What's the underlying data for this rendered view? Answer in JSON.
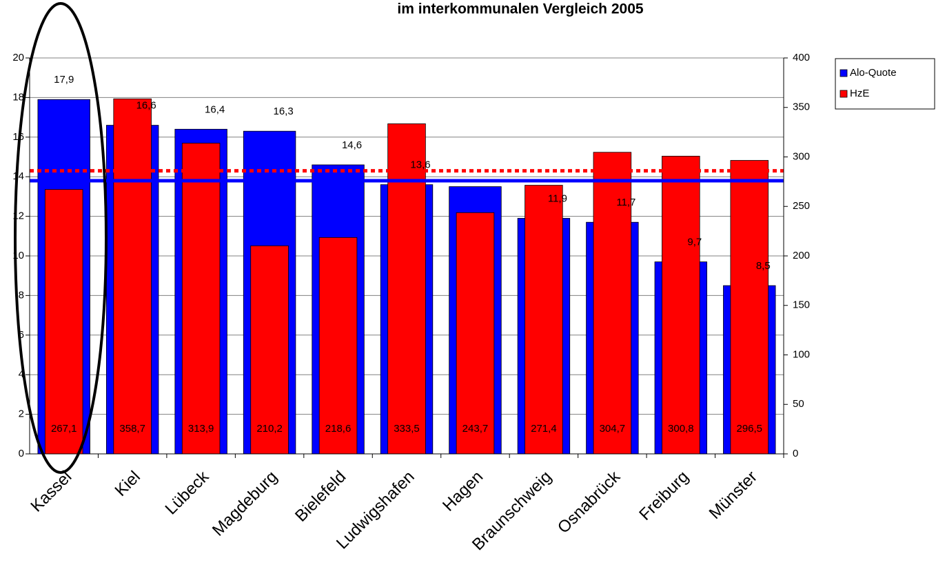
{
  "chart_data": {
    "type": "bar",
    "title": "im interkommunalen Vergleich 2005",
    "categories": [
      "Kassel",
      "Kiel",
      "Lübeck",
      "Magdeburg",
      "Bielefeld",
      "Ludwigshafen",
      "Hagen",
      "Braunschweig",
      "Osnabrück",
      "Freiburg",
      "Münster"
    ],
    "series": [
      {
        "name": "Alo-Quote",
        "color": "#0000ff",
        "axis": "y",
        "values": [
          17.9,
          16.6,
          16.4,
          16.3,
          14.6,
          13.6,
          13.5,
          11.9,
          11.7,
          9.7,
          8.5
        ],
        "value_labels": [
          "17,9",
          "16,6",
          "16,4",
          "16,3",
          "14,6",
          "13,6",
          null,
          "11,9",
          "11,7",
          "9,7",
          "8,5"
        ]
      },
      {
        "name": "HzE",
        "color": "#ff0000",
        "axis": "y2",
        "values": [
          267.1,
          358.7,
          313.9,
          210.2,
          218.6,
          333.5,
          243.7,
          271.4,
          304.7,
          300.8,
          296.5
        ],
        "value_labels": [
          "267,1",
          "358,7",
          "313,9",
          "210,2",
          "218,6",
          "333,5",
          "243,7",
          "271,4",
          "304,7",
          "300,8",
          "296,5"
        ]
      }
    ],
    "reference_lines": [
      {
        "value": 13.8,
        "axis": "y",
        "color": "#0000ff",
        "style": "solid"
      },
      {
        "value": 286,
        "axis": "y2",
        "color": "#ff0000",
        "style": "dotted"
      }
    ],
    "ylim": [
      0,
      20
    ],
    "yticks": [
      0,
      2,
      4,
      6,
      8,
      10,
      12,
      14,
      16,
      18,
      20
    ],
    "y2lim": [
      0,
      400
    ],
    "y2ticks": [
      0,
      50,
      100,
      150,
      200,
      250,
      300,
      350,
      400
    ],
    "grid": true,
    "legend": "right"
  }
}
